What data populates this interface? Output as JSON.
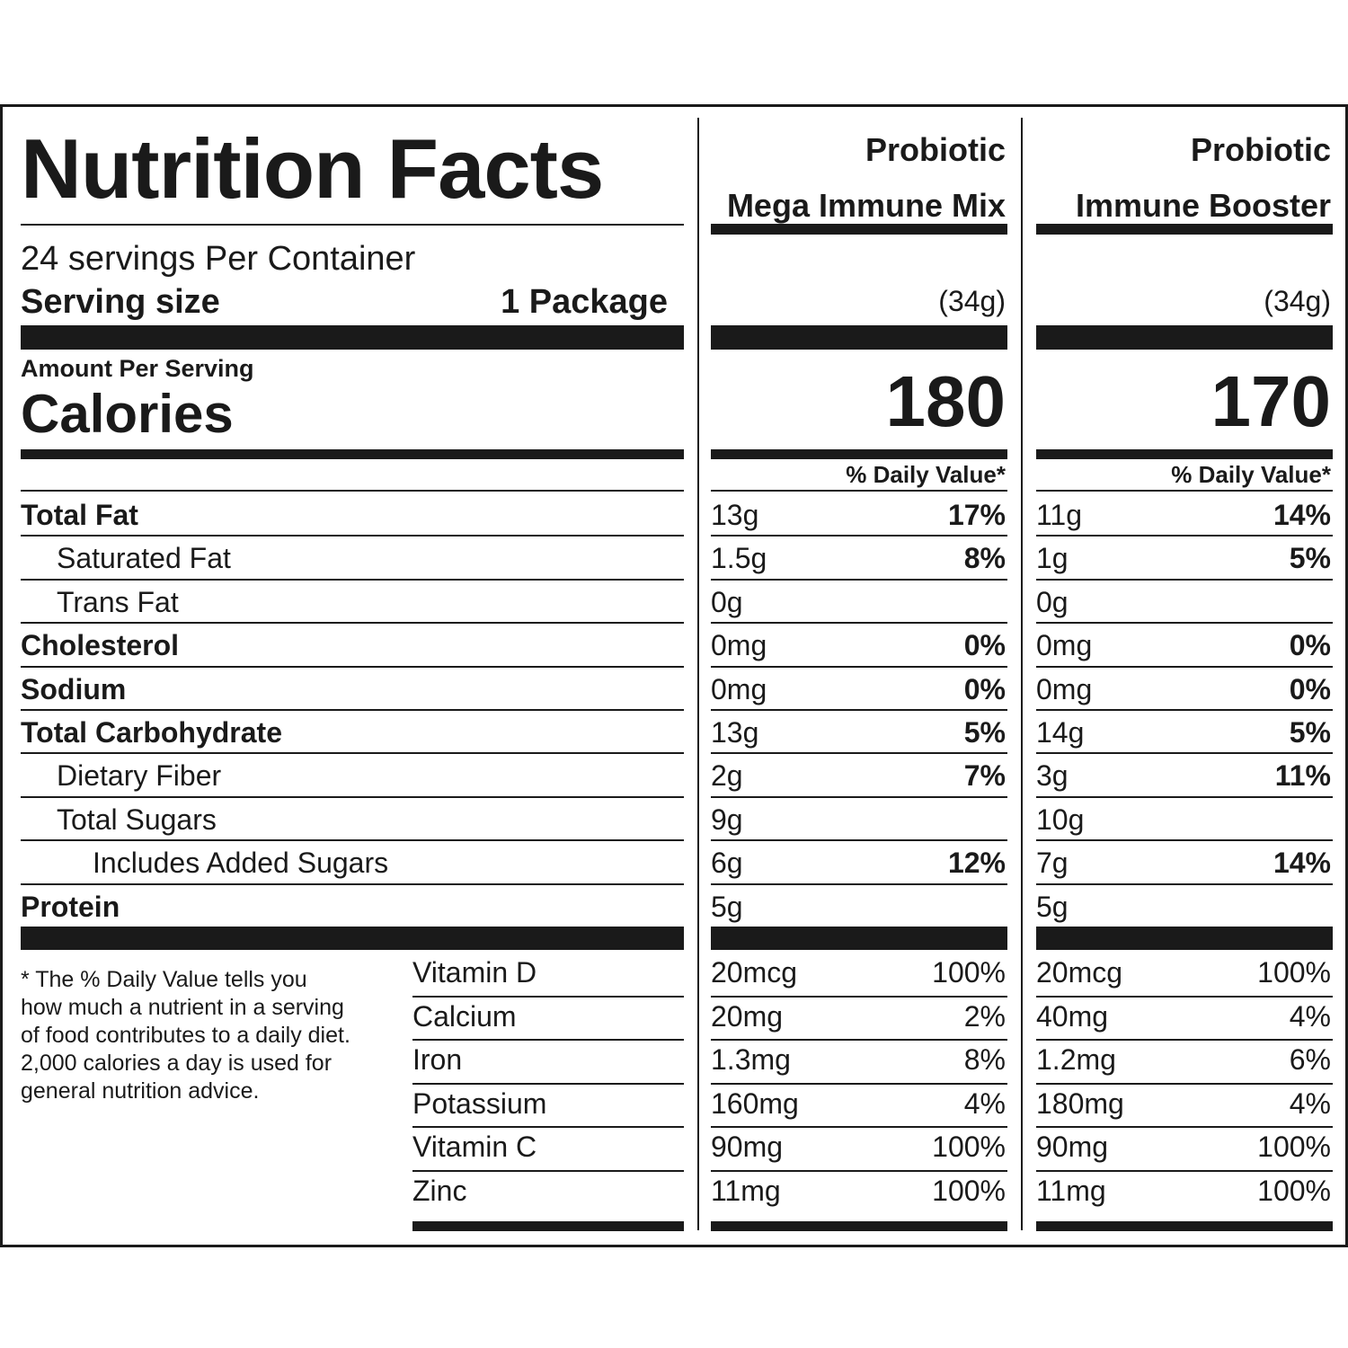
{
  "title": "Nutrition Facts",
  "servings_per_container": "24 servings Per Container",
  "serving_size_label": "Serving size",
  "serving_size_value": "1 Package",
  "amount_per_serving": "Amount Per Serving",
  "calories_label": "Calories",
  "daily_value_header": "% Daily Value*",
  "products": [
    {
      "line1": "Probiotic",
      "line2": "Mega Immune Mix",
      "weight": "(34g)",
      "calories": "180"
    },
    {
      "line1": "Probiotic",
      "line2": "Immune Booster",
      "weight": "(34g)",
      "calories": "170"
    }
  ],
  "nutrients": [
    {
      "label": "Total Fat",
      "p1_amount": "13g",
      "p1_dv": "17%",
      "p2_amount": "11g",
      "p2_dv": "14%"
    },
    {
      "label": "Saturated Fat",
      "p1_amount": "1.5g",
      "p1_dv": "8%",
      "p2_amount": "1g",
      "p2_dv": "5%"
    },
    {
      "label": "Trans Fat",
      "p1_amount": "0g",
      "p1_dv": "",
      "p2_amount": "0g",
      "p2_dv": ""
    },
    {
      "label": "Cholesterol",
      "p1_amount": "0mg",
      "p1_dv": "0%",
      "p2_amount": "0mg",
      "p2_dv": "0%"
    },
    {
      "label": "Sodium",
      "p1_amount": "0mg",
      "p1_dv": "0%",
      "p2_amount": "0mg",
      "p2_dv": "0%"
    },
    {
      "label": "Total Carbohydrate",
      "p1_amount": "13g",
      "p1_dv": "5%",
      "p2_amount": "14g",
      "p2_dv": "5%"
    },
    {
      "label": "Dietary Fiber",
      "p1_amount": "2g",
      "p1_dv": "7%",
      "p2_amount": "3g",
      "p2_dv": "11%"
    },
    {
      "label": "Total Sugars",
      "p1_amount": "9g",
      "p1_dv": "",
      "p2_amount": "10g",
      "p2_dv": ""
    },
    {
      "label": "Includes Added Sugars",
      "p1_amount": "6g",
      "p1_dv": "12%",
      "p2_amount": "7g",
      "p2_dv": "14%"
    },
    {
      "label": "Protein",
      "p1_amount": "5g",
      "p1_dv": "",
      "p2_amount": "5g",
      "p2_dv": ""
    }
  ],
  "vitamins": [
    {
      "label": "Vitamin D",
      "p1_amount": "20mcg",
      "p1_dv": "100%",
      "p2_amount": "20mcg",
      "p2_dv": "100%"
    },
    {
      "label": "Calcium",
      "p1_amount": "20mg",
      "p1_dv": "2%",
      "p2_amount": "40mg",
      "p2_dv": "4%"
    },
    {
      "label": "Iron",
      "p1_amount": "1.3mg",
      "p1_dv": "8%",
      "p2_amount": "1.2mg",
      "p2_dv": "6%"
    },
    {
      "label": "Potassium",
      "p1_amount": "160mg",
      "p1_dv": "4%",
      "p2_amount": "180mg",
      "p2_dv": "4%"
    },
    {
      "label": "Vitamin C",
      "p1_amount": "90mg",
      "p1_dv": "100%",
      "p2_amount": "90mg",
      "p2_dv": "100%"
    },
    {
      "label": "Zinc",
      "p1_amount": "11mg",
      "p1_dv": "100%",
      "p2_amount": "11mg",
      "p2_dv": "100%"
    }
  ],
  "footnote_lines": [
    "* The % Daily Value tells you",
    "how  much a nutrient in a serving",
    "of food contributes to a daily diet.",
    "2,000 calories a day is used for",
    "general nutrition advice."
  ]
}
